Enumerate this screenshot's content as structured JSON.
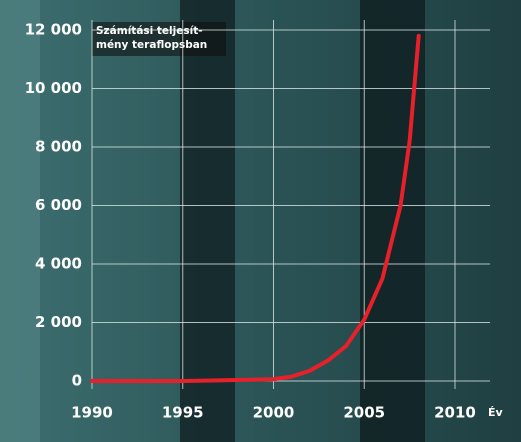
{
  "chart_data": {
    "type": "line",
    "title": [
      "Számítási teljesít-",
      "mény teraflopsban"
    ],
    "x_label": "Év",
    "series": [
      {
        "color": "#e8202a",
        "x": [
          1990,
          1995,
          1997,
          2000,
          2001,
          2002,
          2003,
          2004,
          2005,
          2006,
          2007,
          2007.5,
          2008
        ],
        "values": [
          0,
          0,
          20,
          60,
          150,
          350,
          700,
          1200,
          2100,
          3500,
          6000,
          8200,
          11800
        ]
      }
    ],
    "xlim": [
      1990,
      2010
    ],
    "xticks": [
      1990,
      1995,
      2000,
      2005,
      2010
    ],
    "ylim": [
      0,
      12000
    ],
    "yticks": [
      {
        "value": 0,
        "label": "0"
      },
      {
        "value": 2000,
        "label": "2 000"
      },
      {
        "value": 4000,
        "label": "4 000"
      },
      {
        "value": 6000,
        "label": "6 000"
      },
      {
        "value": 8000,
        "label": "8 000"
      },
      {
        "value": 10000,
        "label": "10 000"
      },
      {
        "value": 12000,
        "label": "12 000"
      }
    ],
    "grid": true
  }
}
